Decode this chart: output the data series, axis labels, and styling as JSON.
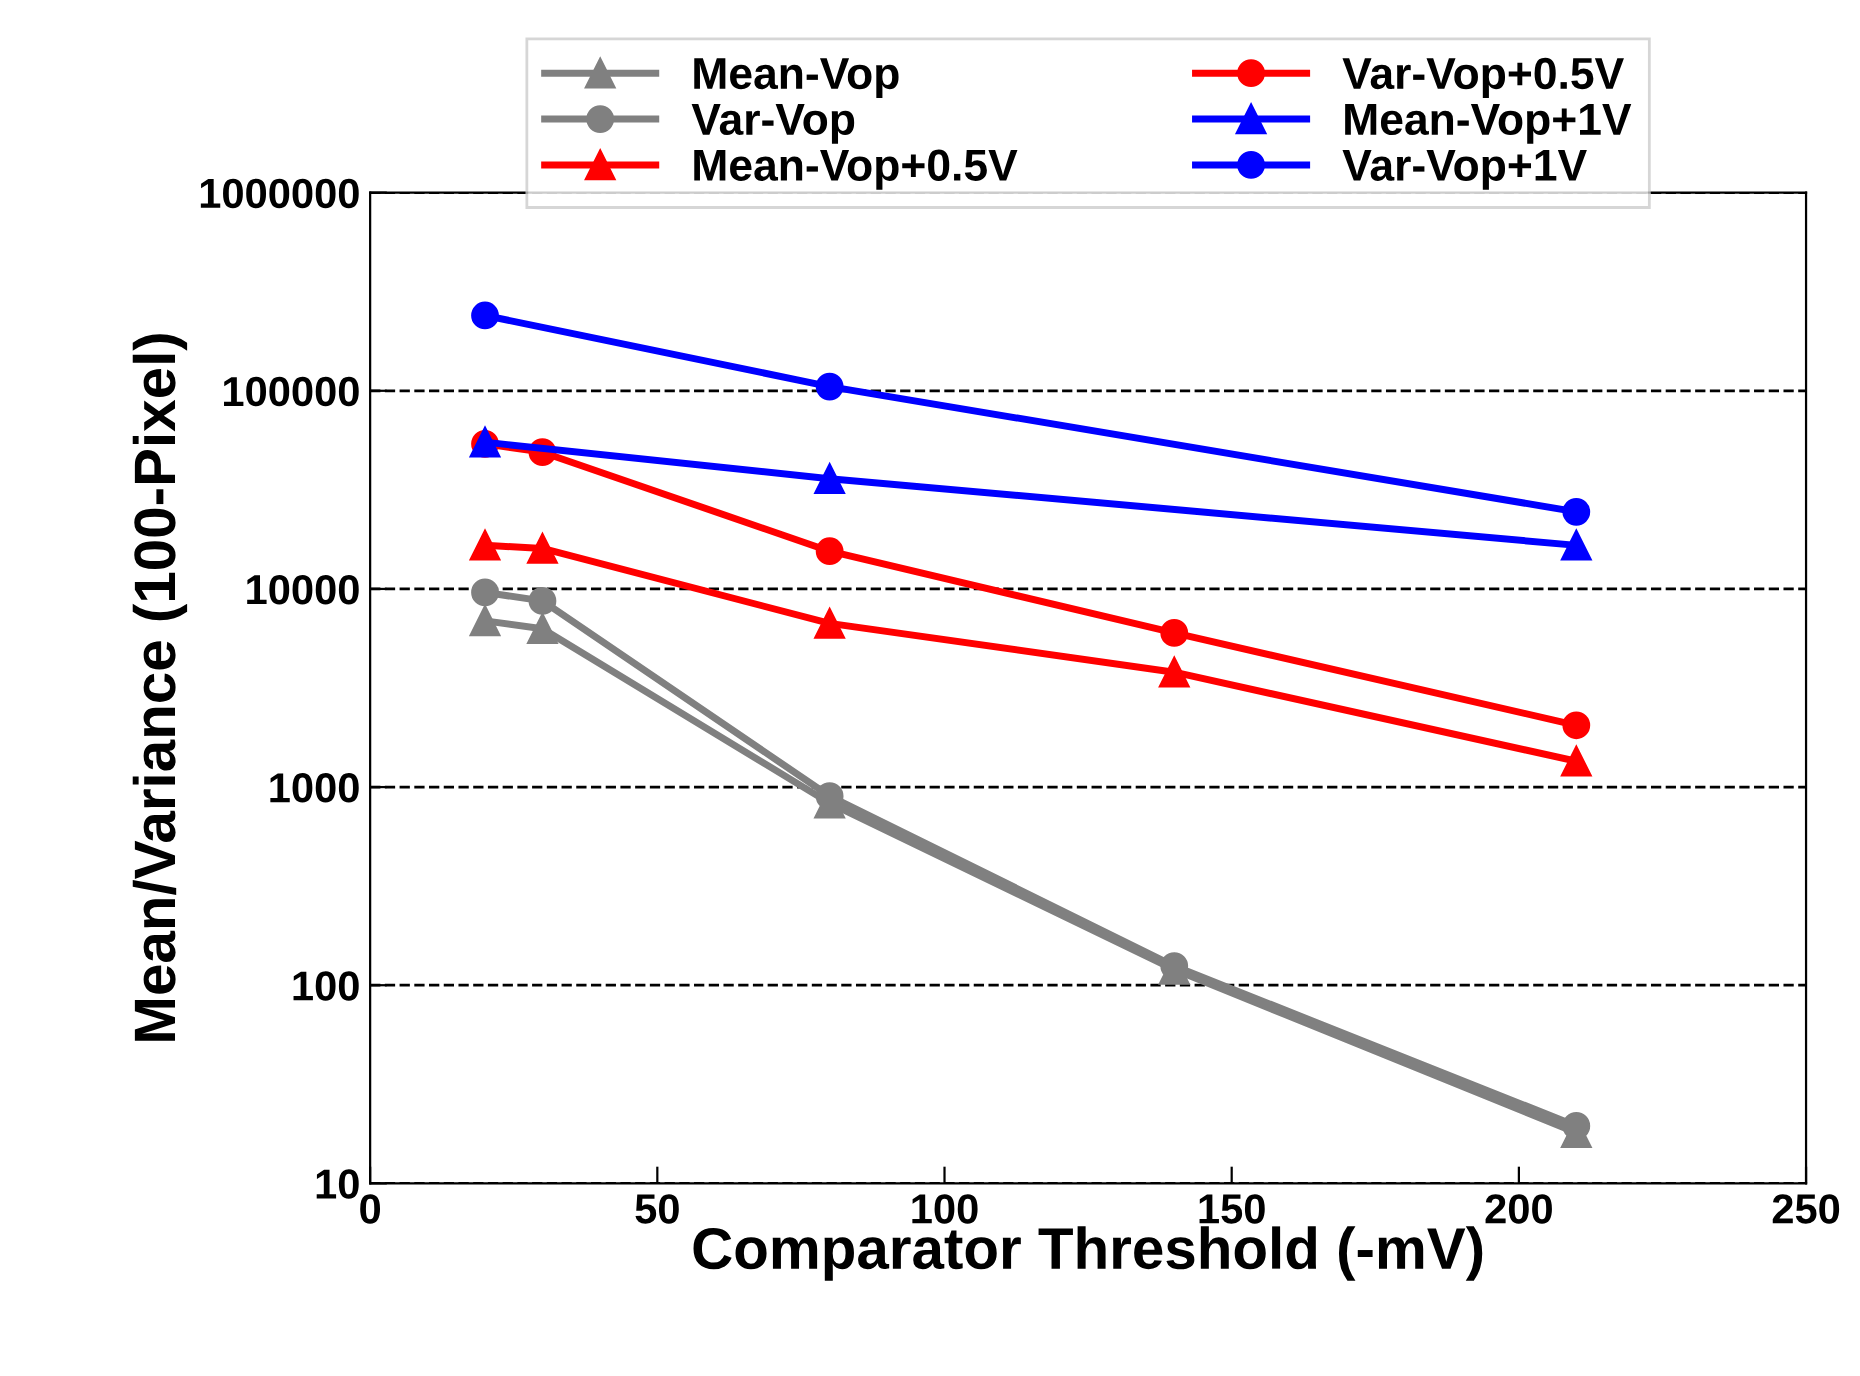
{
  "chart_data": {
    "type": "line",
    "xlabel": "Comparator Threshold (-mV)",
    "ylabel": "Mean/Variance (100-Pixel)",
    "log": "y",
    "xlim": [
      0,
      250
    ],
    "xticks": [
      0,
      50,
      100,
      150,
      200,
      250
    ],
    "ylim": [
      10,
      1000000
    ],
    "yticks": [
      10,
      100,
      1000,
      10000,
      100000,
      1000000
    ],
    "grid": "y",
    "legend": "top",
    "series": [
      {
        "name": "Mean-Vop",
        "color": "#808080",
        "marker": "triangle",
        "x": [
          20,
          30,
          80,
          140,
          210
        ],
        "values": [
          6900,
          6300,
          830,
          120,
          18
        ]
      },
      {
        "name": "Var-Vop",
        "color": "#808080",
        "marker": "circle",
        "x": [
          20,
          30,
          80,
          140,
          210
        ],
        "values": [
          9600,
          8700,
          900,
          125,
          19.5
        ]
      },
      {
        "name": "Mean-Vop+0.5V",
        "color": "#ff0000",
        "marker": "triangle",
        "x": [
          20,
          30,
          80,
          140,
          210
        ],
        "values": [
          16600,
          16000,
          6700,
          3800,
          1350
        ]
      },
      {
        "name": "Var-Vop+0.5V",
        "color": "#ff0000",
        "marker": "circle",
        "x": [
          20,
          30,
          80,
          140,
          210
        ],
        "values": [
          54000,
          49000,
          15500,
          6000,
          2050
        ]
      },
      {
        "name": "Mean-Vop+1V",
        "color": "#0000ff",
        "marker": "triangle",
        "x": [
          20,
          80,
          210
        ],
        "values": [
          55000,
          36000,
          16600
        ]
      },
      {
        "name": "Var-Vop+1V",
        "color": "#0000ff",
        "marker": "circle",
        "x": [
          20,
          80,
          210
        ],
        "values": [
          240000,
          105000,
          24500
        ]
      }
    ]
  }
}
